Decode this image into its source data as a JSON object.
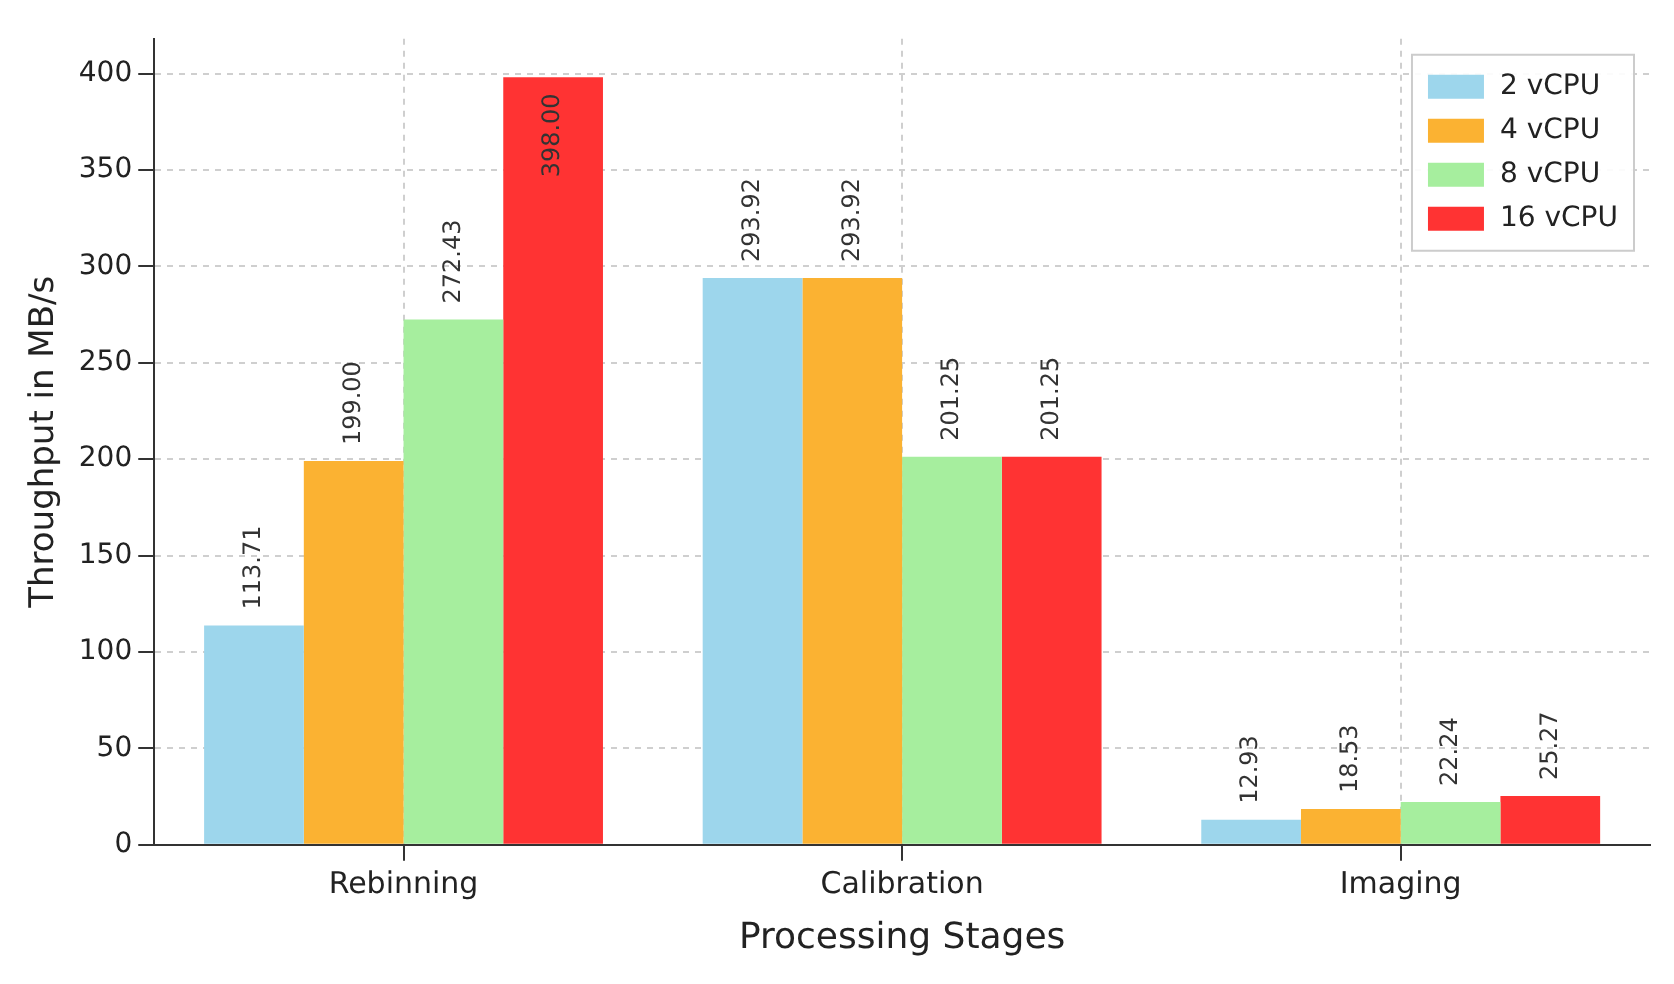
{
  "chart_data": {
    "type": "bar",
    "xlabel": "Processing Stages",
    "ylabel": "Throughput in MB/s",
    "categories": [
      "Rebinning",
      "Calibration",
      "Imaging"
    ],
    "series": [
      {
        "name": "2 vCPU",
        "color": "#9dd6ec",
        "values": [
          113.71,
          293.92,
          12.93
        ]
      },
      {
        "name": "4 vCPU",
        "color": "#fbb232",
        "values": [
          199.0,
          293.92,
          18.53
        ]
      },
      {
        "name": "8 vCPU",
        "color": "#a6ee9e",
        "values": [
          272.43,
          201.25,
          22.24
        ]
      },
      {
        "name": "16 vCPU",
        "color": "#ff3333",
        "values": [
          398.0,
          201.25,
          25.27
        ]
      }
    ],
    "value_labels": [
      [
        "113.71",
        "293.92",
        "12.93"
      ],
      [
        "199.00",
        "293.92",
        "18.53"
      ],
      [
        "272.43",
        "201.25",
        "22.24"
      ],
      [
        "398.00",
        "201.25",
        "25.27"
      ]
    ],
    "ylim": [
      0,
      418
    ],
    "yticks": [
      0,
      50,
      100,
      150,
      200,
      250,
      300,
      350,
      400
    ],
    "grid": true,
    "legend": "top right"
  }
}
